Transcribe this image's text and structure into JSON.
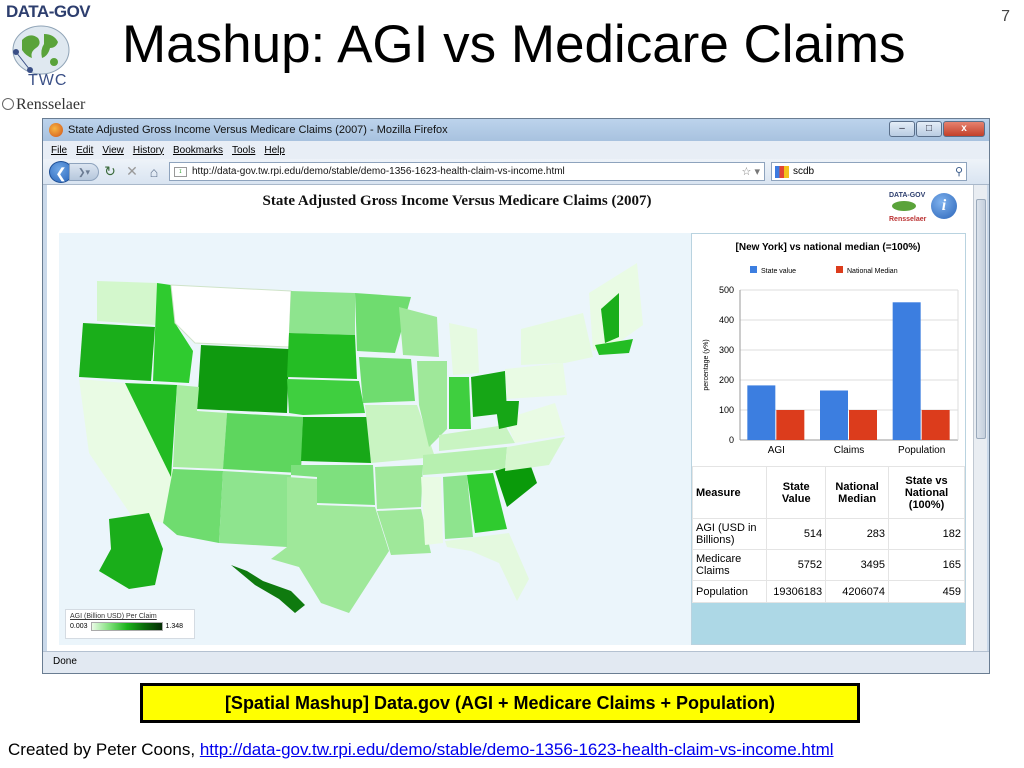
{
  "slide": {
    "title": "Mashup: AGI vs Medicare Claims",
    "page_number": "7",
    "logo_top": "DATA-GOV",
    "logo_twc": "TWC",
    "logo_rpi": "Rensselaer",
    "caption": "[Spatial Mashup] Data.gov (AGI + Medicare Claims + Population)",
    "credit_prefix": "Created by Peter Coons, ",
    "credit_link": "http://data-gov.tw.rpi.edu/demo/stable/demo-1356-1623-health-claim-vs-income.html"
  },
  "browser": {
    "window_title": "State Adjusted Gross Income Versus Medicare Claims (2007) - Mozilla Firefox",
    "menu": [
      "File",
      "Edit",
      "View",
      "History",
      "Bookmarks",
      "Tools",
      "Help"
    ],
    "url": "http://data-gov.tw.rpi.edu/demo/stable/demo-1356-1623-health-claim-vs-income.html",
    "search_value": "scdb",
    "status": "Done",
    "win_buttons": {
      "minimize": "–",
      "maximize": "□",
      "close": "x"
    }
  },
  "page": {
    "heading": "State Adjusted Gross Income Versus Medicare Claims (2007)",
    "logo_text": "DATA-GOV",
    "logo_sub": "Rensselaer",
    "legend": {
      "title": "AGI (Billion USD) Per Claim",
      "min": "0.003",
      "max": "1.348"
    }
  },
  "chart_data": {
    "type": "bar",
    "title": "[New York] vs national median (=100%)",
    "categories": [
      "AGI",
      "Claims",
      "Population"
    ],
    "series": [
      {
        "name": "State value",
        "values": [
          182,
          165,
          459
        ],
        "color": "#3c7ee0"
      },
      {
        "name": "National Median",
        "values": [
          100,
          100,
          100
        ],
        "color": "#dc3c1c"
      }
    ],
    "ylabel": "percentage (y%)",
    "ylim": [
      0,
      500
    ],
    "yticks": [
      0,
      100,
      200,
      300,
      400,
      500
    ],
    "legend_position": "top"
  },
  "table": {
    "headers": [
      "Measure",
      "State Value",
      "National Median",
      "State vs National (100%)"
    ],
    "rows": [
      [
        "AGI (USD in Billions)",
        "514",
        "283",
        "182"
      ],
      [
        "Medicare Claims",
        "5752",
        "3495",
        "165"
      ],
      [
        "Population",
        "19306183",
        "4206074",
        "459"
      ]
    ]
  }
}
